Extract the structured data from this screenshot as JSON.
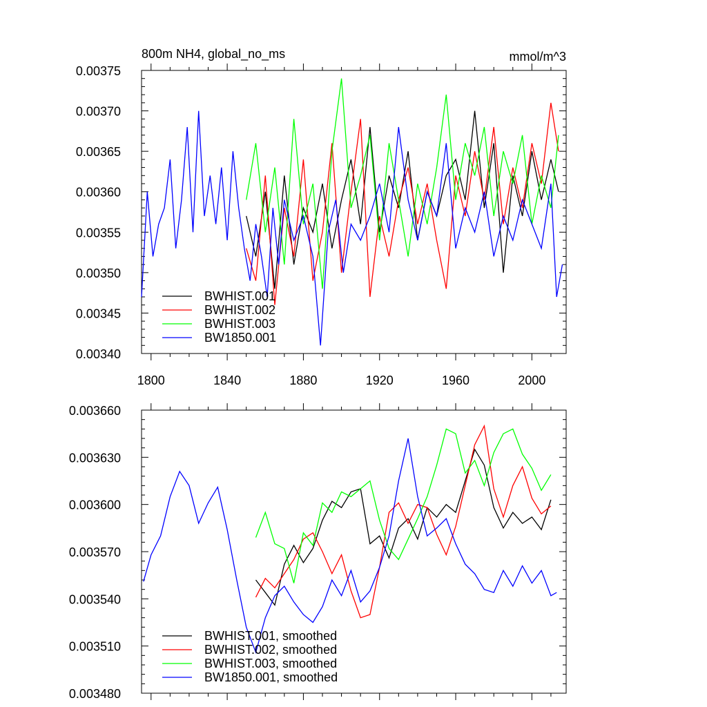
{
  "chart_data": [
    {
      "type": "line",
      "title": "800m NH4, global_no_ms",
      "units": "mmol/m^3",
      "xlim": [
        1795,
        2018
      ],
      "ylim": [
        0.0034,
        0.00375
      ],
      "x_ticks": [
        1800,
        1840,
        1880,
        1920,
        1960,
        2000
      ],
      "y_ticks": [
        "0.00340",
        "0.00345",
        "0.00350",
        "0.00355",
        "0.00360",
        "0.00365",
        "0.00370",
        "0.00375"
      ],
      "legend": "bottom-left",
      "series": [
        {
          "name": "BWHIST.001",
          "color": "#000000",
          "x": [
            1850,
            1855,
            1860,
            1865,
            1870,
            1875,
            1880,
            1885,
            1890,
            1895,
            1900,
            1905,
            1910,
            1915,
            1920,
            1925,
            1930,
            1935,
            1940,
            1945,
            1950,
            1955,
            1960,
            1965,
            1970,
            1975,
            1980,
            1985,
            1990,
            1995,
            2000,
            2005,
            2010,
            2014
          ],
          "y": [
            0.00357,
            0.00352,
            0.0036,
            0.00348,
            0.00362,
            0.00351,
            0.00358,
            0.00355,
            0.00361,
            0.00353,
            0.00359,
            0.00364,
            0.00356,
            0.00368,
            0.00355,
            0.00362,
            0.00358,
            0.00365,
            0.00354,
            0.0036,
            0.00357,
            0.00362,
            0.00364,
            0.00359,
            0.0037,
            0.00358,
            0.00366,
            0.0035,
            0.00362,
            0.00357,
            0.00365,
            0.00359,
            0.00364,
            0.0036
          ]
        },
        {
          "name": "BWHIST.002",
          "color": "#ff0000",
          "x": [
            1850,
            1855,
            1860,
            1865,
            1870,
            1875,
            1880,
            1885,
            1890,
            1895,
            1900,
            1905,
            1910,
            1915,
            1920,
            1925,
            1930,
            1935,
            1940,
            1945,
            1950,
            1955,
            1960,
            1965,
            1970,
            1975,
            1980,
            1985,
            1990,
            1995,
            2000,
            2005,
            2010,
            2014
          ],
          "y": [
            0.00353,
            0.00349,
            0.00362,
            0.00346,
            0.00358,
            0.00352,
            0.00364,
            0.00349,
            0.00355,
            0.00366,
            0.0035,
            0.0036,
            0.00369,
            0.00347,
            0.00357,
            0.00352,
            0.00359,
            0.00363,
            0.00356,
            0.00361,
            0.00354,
            0.00348,
            0.00362,
            0.00357,
            0.00365,
            0.00359,
            0.00368,
            0.00356,
            0.00363,
            0.00358,
            0.00366,
            0.00361,
            0.00371,
            0.00365
          ]
        },
        {
          "name": "BWHIST.003",
          "color": "#00ff00",
          "x": [
            1850,
            1855,
            1860,
            1865,
            1870,
            1875,
            1880,
            1885,
            1890,
            1895,
            1900,
            1905,
            1910,
            1915,
            1920,
            1925,
            1930,
            1935,
            1940,
            1945,
            1950,
            1955,
            1960,
            1965,
            1970,
            1975,
            1980,
            1985,
            1990,
            1995,
            2000,
            2005,
            2010,
            2014
          ],
          "y": [
            0.00359,
            0.00366,
            0.00355,
            0.00363,
            0.00351,
            0.00369,
            0.00356,
            0.00361,
            0.00348,
            0.00365,
            0.00374,
            0.00358,
            0.00362,
            0.00367,
            0.00354,
            0.00366,
            0.00359,
            0.00352,
            0.00361,
            0.00356,
            0.00363,
            0.00372,
            0.00359,
            0.00366,
            0.00362,
            0.00368,
            0.00357,
            0.00365,
            0.00361,
            0.00367,
            0.00356,
            0.00362,
            0.00358,
            0.00367
          ]
        },
        {
          "name": "BW1850.001",
          "color": "#0000ff",
          "x": [
            1795,
            1798,
            1801,
            1804,
            1807,
            1810,
            1813,
            1816,
            1819,
            1822,
            1825,
            1828,
            1831,
            1834,
            1837,
            1840,
            1843,
            1846,
            1849,
            1852,
            1855,
            1858,
            1861,
            1864,
            1867,
            1870,
            1875,
            1880,
            1885,
            1889,
            1893,
            1897,
            1901,
            1905,
            1910,
            1915,
            1920,
            1925,
            1930,
            1935,
            1940,
            1945,
            1950,
            1955,
            1960,
            1965,
            1970,
            1975,
            1980,
            1985,
            1990,
            1995,
            2000,
            2005,
            2010,
            2013,
            2016
          ],
          "y": [
            0.00347,
            0.0036,
            0.00352,
            0.00356,
            0.00358,
            0.00364,
            0.00353,
            0.00359,
            0.00368,
            0.00355,
            0.0037,
            0.00357,
            0.00362,
            0.00356,
            0.00363,
            0.00354,
            0.00365,
            0.00358,
            0.00353,
            0.00349,
            0.00356,
            0.00352,
            0.00347,
            0.00358,
            0.00351,
            0.00359,
            0.00354,
            0.00357,
            0.00352,
            0.00341,
            0.00355,
            0.00359,
            0.0035,
            0.00356,
            0.00354,
            0.00357,
            0.00361,
            0.00355,
            0.00368,
            0.00359,
            0.00354,
            0.0036,
            0.00357,
            0.00366,
            0.00353,
            0.00358,
            0.00355,
            0.0036,
            0.00352,
            0.00357,
            0.00354,
            0.00359,
            0.00356,
            0.00353,
            0.00361,
            0.00347,
            0.00351
          ]
        }
      ]
    },
    {
      "type": "line",
      "title": "",
      "xlim": [
        1795,
        2018
      ],
      "ylim": [
        0.00348,
        0.00366
      ],
      "y_ticks": [
        "0.003480",
        "0.003510",
        "0.003540",
        "0.003570",
        "0.003600",
        "0.003630",
        "0.003660"
      ],
      "legend": "bottom-left",
      "series": [
        {
          "name": "BWHIST.001, smoothed",
          "color": "#000000",
          "x": [
            1855,
            1860,
            1865,
            1870,
            1875,
            1880,
            1885,
            1890,
            1895,
            1900,
            1905,
            1910,
            1915,
            1920,
            1925,
            1930,
            1935,
            1940,
            1945,
            1950,
            1955,
            1960,
            1965,
            1970,
            1975,
            1980,
            1985,
            1990,
            1995,
            2000,
            2005,
            2010
          ],
          "y": [
            0.003552,
            0.003544,
            0.003536,
            0.003562,
            0.003574,
            0.003563,
            0.003572,
            0.00359,
            0.003602,
            0.003598,
            0.003608,
            0.00361,
            0.003575,
            0.00358,
            0.003566,
            0.003585,
            0.003591,
            0.003578,
            0.003598,
            0.003592,
            0.0036,
            0.003595,
            0.003615,
            0.003635,
            0.003625,
            0.003598,
            0.003585,
            0.003595,
            0.003588,
            0.003592,
            0.003584,
            0.003603
          ]
        },
        {
          "name": "BWHIST.002, smoothed",
          "color": "#ff0000",
          "x": [
            1855,
            1860,
            1865,
            1870,
            1875,
            1880,
            1885,
            1890,
            1895,
            1900,
            1905,
            1910,
            1915,
            1920,
            1925,
            1930,
            1935,
            1940,
            1945,
            1950,
            1955,
            1960,
            1965,
            1970,
            1975,
            1980,
            1985,
            1990,
            1995,
            2000,
            2005,
            2010
          ],
          "y": [
            0.003541,
            0.003553,
            0.003547,
            0.003556,
            0.003565,
            0.003578,
            0.003582,
            0.00357,
            0.003556,
            0.003568,
            0.003545,
            0.003528,
            0.00353,
            0.00356,
            0.003595,
            0.003601,
            0.003588,
            0.0036,
            0.003598,
            0.003581,
            0.003568,
            0.003586,
            0.003612,
            0.003638,
            0.00365,
            0.00361,
            0.003592,
            0.003612,
            0.003624,
            0.003604,
            0.003594,
            0.003599
          ]
        },
        {
          "name": "BWHIST.003, smoothed",
          "color": "#00ff00",
          "x": [
            1855,
            1860,
            1865,
            1870,
            1875,
            1880,
            1885,
            1890,
            1895,
            1900,
            1905,
            1910,
            1915,
            1920,
            1925,
            1930,
            1935,
            1940,
            1945,
            1950,
            1955,
            1960,
            1965,
            1970,
            1975,
            1980,
            1985,
            1990,
            1995,
            2000,
            2005,
            2010
          ],
          "y": [
            0.003579,
            0.003595,
            0.003575,
            0.003572,
            0.00355,
            0.003582,
            0.003574,
            0.003601,
            0.003595,
            0.003608,
            0.003605,
            0.00361,
            0.003615,
            0.00359,
            0.003572,
            0.003565,
            0.003578,
            0.003591,
            0.003605,
            0.003625,
            0.003648,
            0.003645,
            0.00362,
            0.003628,
            0.003612,
            0.003633,
            0.003645,
            0.003648,
            0.003632,
            0.003623,
            0.003609,
            0.003619
          ]
        },
        {
          "name": "BW1850.001, smoothed",
          "color": "#0000ff",
          "x": [
            1796,
            1800,
            1805,
            1810,
            1815,
            1820,
            1825,
            1830,
            1835,
            1840,
            1845,
            1850,
            1855,
            1860,
            1865,
            1870,
            1875,
            1880,
            1885,
            1890,
            1895,
            1900,
            1905,
            1910,
            1915,
            1920,
            1925,
            1930,
            1935,
            1940,
            1945,
            1950,
            1955,
            1960,
            1965,
            1970,
            1975,
            1980,
            1985,
            1990,
            1995,
            2000,
            2005,
            2010,
            2013
          ],
          "y": [
            0.003551,
            0.003568,
            0.00358,
            0.003605,
            0.003621,
            0.003612,
            0.003588,
            0.003601,
            0.003611,
            0.003584,
            0.003552,
            0.003522,
            0.003506,
            0.003528,
            0.003542,
            0.003548,
            0.003538,
            0.00353,
            0.003525,
            0.003535,
            0.003552,
            0.003542,
            0.003558,
            0.003538,
            0.003545,
            0.00356,
            0.00358,
            0.003615,
            0.003642,
            0.003605,
            0.00358,
            0.003585,
            0.003591,
            0.003575,
            0.003562,
            0.003556,
            0.003546,
            0.003544,
            0.003558,
            0.003548,
            0.003561,
            0.00355,
            0.003558,
            0.003542,
            0.003544
          ]
        }
      ]
    }
  ]
}
